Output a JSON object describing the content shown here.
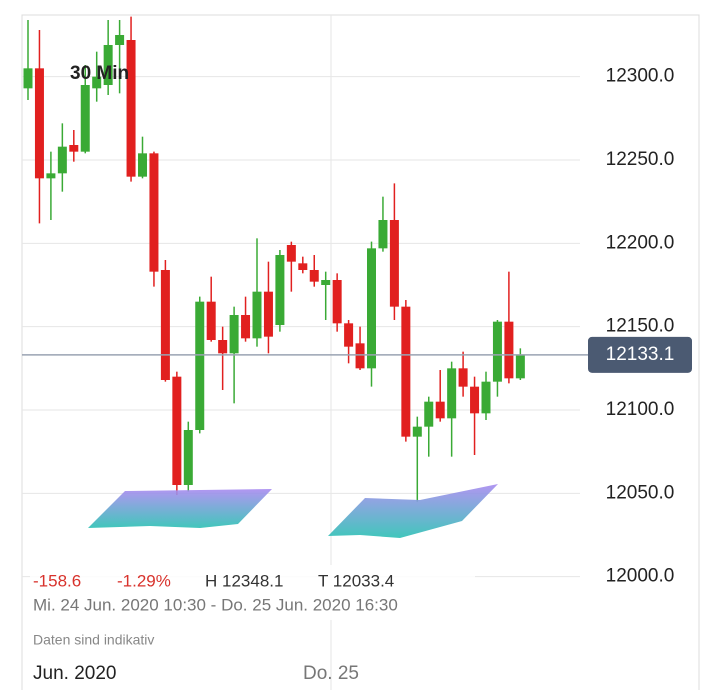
{
  "chart_data": {
    "type": "candlestick",
    "interval_label": "30 Min",
    "open": [
      12293,
      12305,
      12239,
      12242,
      12259,
      12255,
      12293,
      12295,
      12319,
      12322,
      12240,
      12254,
      12184,
      12120,
      12055,
      12088,
      12165,
      12142,
      12134,
      12157,
      12143,
      12171,
      12151,
      12199,
      12188,
      12184,
      12175,
      12178,
      12152,
      12140,
      12125,
      12197,
      12214,
      12162,
      12084,
      12090,
      12105,
      12095,
      12125,
      12114,
      12098,
      12117,
      12153,
      12119
    ],
    "high": [
      12334,
      12328,
      12255,
      12272,
      12268,
      12307,
      12315,
      12334,
      12334,
      12336,
      12264,
      12255,
      12190,
      12123,
      12093,
      12168,
      12180,
      12150,
      12162,
      12168,
      12203,
      12189,
      12196,
      12201,
      12192,
      12193,
      12183,
      12182,
      12154,
      12150,
      12201,
      12228,
      12236,
      12166,
      12096,
      12108,
      12124,
      12129,
      12135,
      12120,
      12123,
      12154,
      12183,
      12137
    ],
    "low": [
      12286,
      12212,
      12214,
      12231,
      12249,
      12254,
      12285,
      12289,
      12290,
      12237,
      12239,
      12174,
      12117,
      12049,
      12051,
      12086,
      12141,
      12112,
      12104,
      12141,
      12138,
      12134,
      12147,
      12171,
      12182,
      12174,
      12154,
      12147,
      12128,
      12124,
      12114,
      12195,
      12154,
      12081,
      12045,
      12072,
      12093,
      12072,
      12108,
      12073,
      12094,
      12108,
      12116,
      12118
    ],
    "close": [
      12305,
      12239,
      12242,
      12258,
      12255,
      12295,
      12300,
      12319,
      12325,
      12240,
      12254,
      12183,
      12118,
      12055,
      12088,
      12165,
      12142,
      12134,
      12157,
      12143,
      12171,
      12144,
      12193,
      12189,
      12184,
      12177,
      12178,
      12152,
      12138,
      12125,
      12197,
      12214,
      12162,
      12084,
      12090,
      12105,
      12095,
      12125,
      12114,
      12098,
      12117,
      12153,
      12119,
      12133.1
    ],
    "up_color": "#3aaa35",
    "down_color": "#e1201f",
    "ylim": [
      11932,
      12337
    ],
    "yticks": [
      {
        "value": 12000,
        "label": "12000.0"
      },
      {
        "value": 12050,
        "label": "12050.0"
      },
      {
        "value": 12100,
        "label": "12100.0"
      },
      {
        "value": 12150,
        "label": "12150.0"
      },
      {
        "value": 12200,
        "label": "12200.0"
      },
      {
        "value": 12250,
        "label": "12250.0"
      },
      {
        "value": 12300,
        "label": "12300.0"
      }
    ],
    "grid": true,
    "last_price": 12133.1,
    "stats": {
      "change": -158.6,
      "change_pct": -1.29,
      "change_pct_label": "-1.29%",
      "high_label": "H 12348.1",
      "low_label": "T 12033.4"
    },
    "date_range": "Mi. 24 Jun. 2020 10:30 - Do. 25 Jun. 2020 16:30",
    "note": "Daten sind indikativ",
    "x_labels": [
      "Jun. 2020",
      "Do. 25"
    ]
  }
}
